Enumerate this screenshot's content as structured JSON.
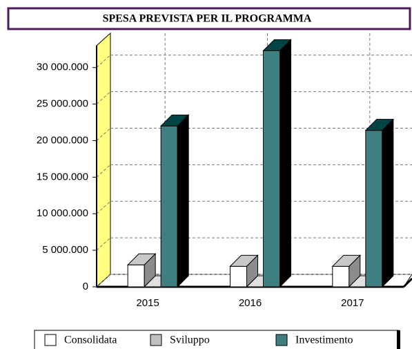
{
  "chart_data": {
    "type": "bar3d",
    "title": "SPESA PREVISTA PER IL PROGRAMMA",
    "categories": [
      "2015",
      "2016",
      "2017"
    ],
    "series": [
      {
        "name": "Consolidata",
        "color": "#ffffff",
        "values": [
          3000000,
          2800000,
          2800000
        ]
      },
      {
        "name": "Sviluppo",
        "color": "#c0c0c0",
        "values": [
          0,
          0,
          0
        ]
      },
      {
        "name": "Investimento",
        "color": "#3f7f7f",
        "values": [
          22000000,
          32300000,
          21400000
        ]
      }
    ],
    "ylim": [
      0,
      33000000
    ],
    "yticks": [
      {
        "value": 0,
        "label": "0"
      },
      {
        "value": 5000000,
        "label": "5 000.000"
      },
      {
        "value": 10000000,
        "label": "10 000.000"
      },
      {
        "value": 15000000,
        "label": "15 000.000"
      },
      {
        "value": 20000000,
        "label": "20 000.000"
      },
      {
        "value": 25000000,
        "label": "25 000.000"
      },
      {
        "value": 30000000,
        "label": "30 000.000"
      }
    ],
    "grid": true
  }
}
